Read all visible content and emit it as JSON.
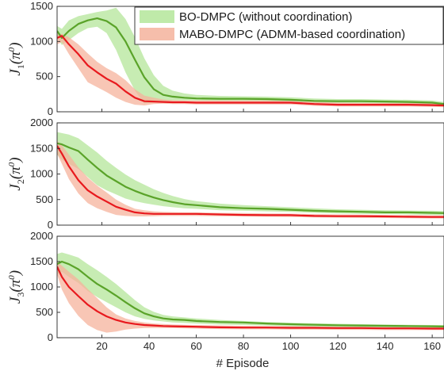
{
  "chart_data": [
    {
      "type": "line",
      "panel": 1,
      "ylabel_base": "J",
      "ylabel_sub": "1",
      "ylabel_arg": "π",
      "ylabel_sup": "0",
      "xlim": [
        1,
        165
      ],
      "ylim": [
        0,
        1500
      ],
      "yticks": [
        "0",
        "500",
        "1000",
        "1500"
      ],
      "grid": false,
      "legend": {
        "position": "top-right",
        "entries": [
          "BO-DMPC (without coordination)",
          "MABO-DMPC (ADMM-based coordination)"
        ]
      },
      "series": [
        {
          "name": "BO-DMPC (without coordination)",
          "color": "#5aa329",
          "band_color": "#b4e69a",
          "x": [
            1,
            3,
            6,
            10,
            14,
            18,
            22,
            26,
            30,
            34,
            38,
            42,
            46,
            50,
            55,
            60,
            70,
            80,
            90,
            100,
            110,
            120,
            130,
            140,
            150,
            160,
            165
          ],
          "mean": [
            1150,
            1050,
            1150,
            1250,
            1300,
            1330,
            1290,
            1200,
            1000,
            740,
            490,
            320,
            240,
            215,
            200,
            190,
            185,
            185,
            180,
            170,
            155,
            150,
            150,
            145,
            140,
            130,
            110
          ],
          "upper": [
            1220,
            1180,
            1300,
            1360,
            1390,
            1420,
            1440,
            1480,
            1320,
            1060,
            760,
            520,
            370,
            300,
            260,
            240,
            225,
            220,
            215,
            205,
            190,
            180,
            180,
            175,
            170,
            160,
            140
          ],
          "lower": [
            1060,
            950,
            1020,
            1120,
            1190,
            1210,
            1120,
            880,
            560,
            300,
            120,
            130,
            150,
            160,
            160,
            160,
            155,
            155,
            150,
            140,
            125,
            120,
            120,
            115,
            110,
            100,
            90
          ]
        },
        {
          "name": "MABO-DMPC (ADMM-based coordination)",
          "color": "#e8191e",
          "band_color": "#f5b39c",
          "x": [
            1,
            3,
            6,
            10,
            14,
            18,
            22,
            26,
            30,
            34,
            38,
            42,
            46,
            50,
            55,
            60,
            70,
            80,
            90,
            100,
            110,
            120,
            130,
            140,
            150,
            160,
            165
          ],
          "mean": [
            1050,
            1080,
            960,
            820,
            660,
            560,
            470,
            400,
            290,
            200,
            150,
            145,
            140,
            135,
            135,
            130,
            130,
            130,
            130,
            130,
            110,
            100,
            100,
            100,
            100,
            95,
            90
          ],
          "upper": [
            1100,
            1110,
            1060,
            960,
            830,
            710,
            620,
            550,
            450,
            320,
            230,
            200,
            175,
            165,
            160,
            160,
            160,
            160,
            160,
            155,
            140,
            130,
            125,
            125,
            125,
            120,
            115
          ],
          "lower": [
            960,
            990,
            820,
            620,
            420,
            350,
            280,
            200,
            140,
            100,
            90,
            110,
            115,
            110,
            110,
            105,
            105,
            105,
            105,
            105,
            85,
            75,
            75,
            75,
            75,
            70,
            65
          ]
        }
      ]
    },
    {
      "type": "line",
      "panel": 2,
      "ylabel_base": "J",
      "ylabel_sub": "2",
      "ylabel_arg": "π",
      "ylabel_sup": "0",
      "xlim": [
        1,
        165
      ],
      "ylim": [
        0,
        2000
      ],
      "yticks": [
        "0",
        "500",
        "1000",
        "1500",
        "2000"
      ],
      "grid": false,
      "series": [
        {
          "name": "BO-DMPC (without coordination)",
          "color": "#5aa329",
          "band_color": "#b4e69a",
          "x": [
            1,
            3,
            6,
            10,
            14,
            18,
            22,
            26,
            30,
            34,
            38,
            42,
            46,
            50,
            55,
            60,
            70,
            80,
            90,
            100,
            110,
            120,
            130,
            140,
            150,
            160,
            165
          ],
          "mean": [
            1600,
            1580,
            1520,
            1450,
            1280,
            1120,
            970,
            860,
            750,
            670,
            600,
            540,
            490,
            450,
            410,
            390,
            350,
            330,
            320,
            300,
            280,
            270,
            260,
            250,
            250,
            240,
            235
          ],
          "upper": [
            1820,
            1800,
            1770,
            1700,
            1560,
            1420,
            1260,
            1120,
            990,
            880,
            790,
            700,
            630,
            570,
            510,
            470,
            420,
            390,
            370,
            350,
            330,
            310,
            300,
            290,
            285,
            280,
            275
          ],
          "lower": [
            1380,
            1280,
            1200,
            1100,
            940,
            780,
            680,
            600,
            520,
            470,
            430,
            400,
            370,
            350,
            330,
            320,
            290,
            280,
            270,
            260,
            240,
            230,
            220,
            215,
            210,
            200,
            195
          ]
        },
        {
          "name": "MABO-DMPC (ADMM-based coordination)",
          "color": "#e8191e",
          "band_color": "#f5b39c",
          "x": [
            1,
            3,
            6,
            10,
            14,
            18,
            22,
            26,
            30,
            34,
            38,
            42,
            46,
            50,
            55,
            60,
            70,
            80,
            90,
            100,
            110,
            120,
            130,
            140,
            150,
            160,
            165
          ],
          "mean": [
            1550,
            1400,
            1150,
            880,
            680,
            560,
            460,
            360,
            300,
            250,
            230,
            220,
            220,
            220,
            220,
            220,
            210,
            200,
            195,
            195,
            180,
            175,
            175,
            170,
            165,
            160,
            160
          ],
          "upper": [
            1650,
            1560,
            1380,
            1130,
            930,
            770,
            640,
            500,
            400,
            320,
            290,
            270,
            260,
            255,
            250,
            250,
            240,
            235,
            230,
            225,
            215,
            210,
            205,
            200,
            195,
            190,
            190
          ],
          "lower": [
            1400,
            1200,
            900,
            620,
            430,
            330,
            260,
            200,
            180,
            170,
            170,
            175,
            180,
            180,
            180,
            180,
            175,
            170,
            165,
            160,
            150,
            145,
            140,
            140,
            135,
            130,
            130
          ]
        }
      ]
    },
    {
      "type": "line",
      "panel": 3,
      "ylabel_base": "J",
      "ylabel_sub": "3",
      "ylabel_arg": "π",
      "ylabel_sup": "0",
      "xlabel": "# Episode",
      "xlim": [
        1,
        165
      ],
      "ylim": [
        0,
        2000
      ],
      "xticks": [
        "20",
        "40",
        "60",
        "80",
        "100",
        "120",
        "140",
        "160"
      ],
      "yticks": [
        "0",
        "500",
        "1000",
        "1500",
        "2000"
      ],
      "grid": false,
      "series": [
        {
          "name": "BO-DMPC (without coordination)",
          "color": "#5aa329",
          "band_color": "#b4e69a",
          "x": [
            1,
            3,
            6,
            10,
            14,
            18,
            22,
            26,
            30,
            34,
            38,
            42,
            46,
            50,
            55,
            60,
            70,
            80,
            90,
            100,
            110,
            120,
            130,
            140,
            150,
            160,
            165
          ],
          "mean": [
            1450,
            1500,
            1450,
            1350,
            1200,
            1060,
            950,
            830,
            700,
            580,
            480,
            420,
            380,
            360,
            350,
            330,
            310,
            300,
            280,
            265,
            255,
            245,
            240,
            235,
            230,
            225,
            220
          ],
          "upper": [
            1650,
            1680,
            1640,
            1580,
            1450,
            1330,
            1200,
            1060,
            900,
            740,
            600,
            510,
            450,
            420,
            400,
            380,
            350,
            330,
            310,
            295,
            285,
            275,
            265,
            260,
            255,
            250,
            250
          ],
          "lower": [
            1250,
            1300,
            1200,
            1080,
            920,
            800,
            700,
            600,
            500,
            420,
            370,
            340,
            320,
            300,
            290,
            280,
            260,
            250,
            240,
            225,
            215,
            205,
            200,
            195,
            190,
            185,
            180
          ]
        },
        {
          "name": "MABO-DMPC (ADMM-based coordination)",
          "color": "#e8191e",
          "band_color": "#f5b39c",
          "x": [
            1,
            3,
            6,
            10,
            14,
            18,
            22,
            26,
            30,
            34,
            38,
            42,
            46,
            50,
            55,
            60,
            70,
            80,
            90,
            100,
            110,
            120,
            130,
            140,
            150,
            160,
            165
          ],
          "mean": [
            1400,
            1200,
            1000,
            820,
            650,
            520,
            420,
            350,
            300,
            270,
            250,
            240,
            230,
            225,
            220,
            215,
            205,
            200,
            200,
            195,
            195,
            190,
            190,
            185,
            185,
            180,
            180
          ],
          "upper": [
            1500,
            1420,
            1300,
            1150,
            960,
            780,
            600,
            460,
            380,
            330,
            300,
            280,
            270,
            260,
            255,
            250,
            240,
            235,
            230,
            225,
            220,
            215,
            215,
            210,
            210,
            205,
            205
          ],
          "lower": [
            1250,
            950,
            680,
            430,
            250,
            150,
            100,
            120,
            160,
            180,
            190,
            190,
            190,
            190,
            185,
            180,
            170,
            165,
            165,
            160,
            160,
            155,
            155,
            150,
            150,
            150,
            150
          ]
        }
      ]
    }
  ]
}
